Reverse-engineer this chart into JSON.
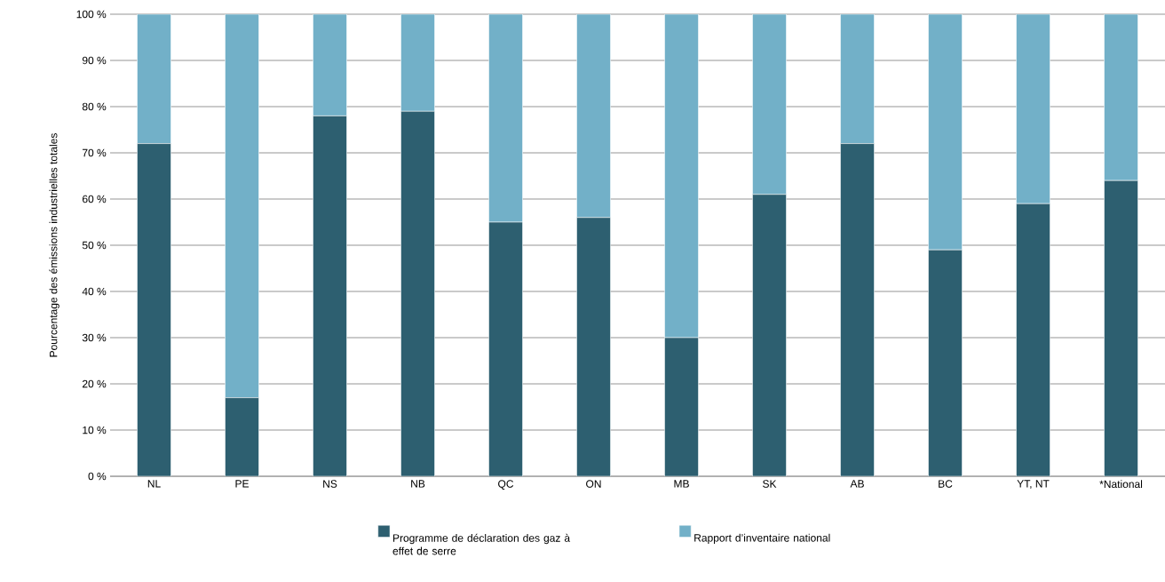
{
  "chart_data": {
    "type": "bar",
    "stacked": true,
    "ylabel": "Pourcentage des émissions industrielles totales",
    "categories": [
      "NL",
      "PE",
      "NS",
      "NB",
      "QC",
      "ON",
      "MB",
      "SK",
      "AB",
      "BC",
      "YT, NT",
      "*National"
    ],
    "series": [
      {
        "name": "Programme de déclaration des gaz à effet de serre",
        "color": "#2d5f70",
        "values": [
          72,
          17,
          78,
          79,
          55,
          56,
          30,
          61,
          72,
          49,
          59,
          64
        ]
      },
      {
        "name": "Rapport d’inventaire national",
        "color": "#72b0c8",
        "values": [
          28,
          83,
          22,
          21,
          45,
          44,
          70,
          39,
          28,
          51,
          41,
          36
        ]
      }
    ],
    "ylim": [
      0,
      100
    ],
    "yticks": [
      {
        "value": 0,
        "label": "0 %"
      },
      {
        "value": 10,
        "label": "10 %"
      },
      {
        "value": 20,
        "label": "20 %"
      },
      {
        "value": 30,
        "label": "30 %"
      },
      {
        "value": 40,
        "label": "40 %"
      },
      {
        "value": 50,
        "label": "50 %"
      },
      {
        "value": 60,
        "label": "60 %"
      },
      {
        "value": 70,
        "label": "70 %"
      },
      {
        "value": 80,
        "label": "80 %"
      },
      {
        "value": 90,
        "label": "90 %"
      },
      {
        "value": 100,
        "label": "100 %"
      }
    ],
    "grid": "y",
    "legend": "bottom"
  }
}
